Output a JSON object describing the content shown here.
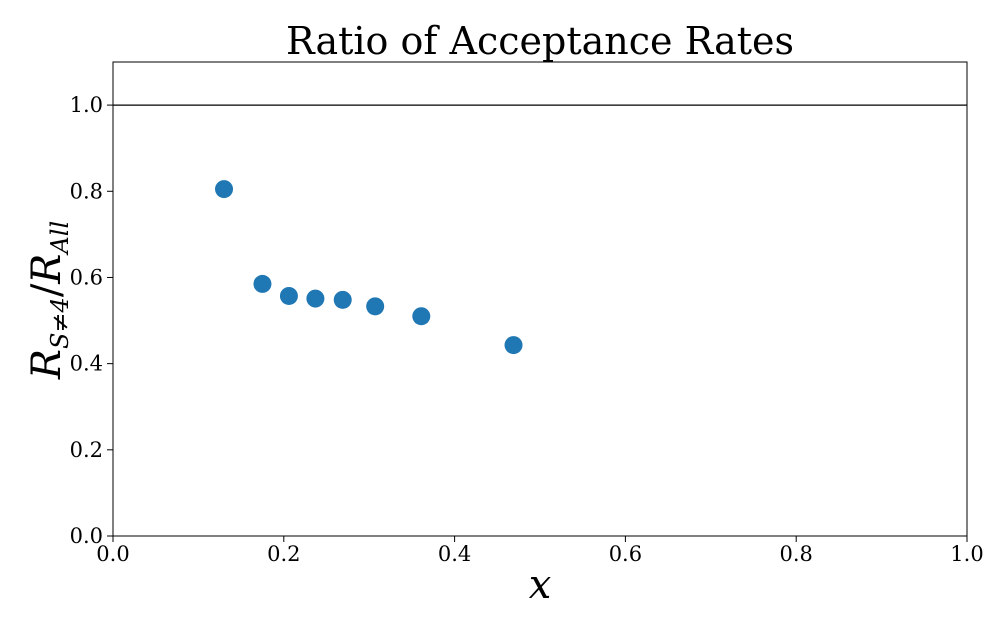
{
  "chart_data": {
    "type": "scatter",
    "title": "Ratio of Acceptance Rates",
    "xlabel": "x",
    "ylabel": {
      "main_1": "R",
      "sub_1": "S≠4",
      "slash": "/",
      "main_2": "R",
      "sub_2": "All"
    },
    "xlim": [
      0.0,
      1.0
    ],
    "ylim": [
      0.0,
      1.1
    ],
    "x_ticks": [
      "0.0",
      "0.2",
      "0.4",
      "0.6",
      "0.8",
      "1.0"
    ],
    "y_ticks": [
      "0.0",
      "0.2",
      "0.4",
      "0.6",
      "0.8",
      "1.0"
    ],
    "grid": false,
    "reference_line": {
      "y": 1.0,
      "color": "#000000"
    },
    "series": [
      {
        "color": "#1f77b4",
        "x": [
          0.13,
          0.175,
          0.206,
          0.237,
          0.269,
          0.307,
          0.361,
          0.469
        ],
        "y": [
          0.805,
          0.585,
          0.557,
          0.551,
          0.548,
          0.533,
          0.51,
          0.443
        ]
      }
    ]
  }
}
